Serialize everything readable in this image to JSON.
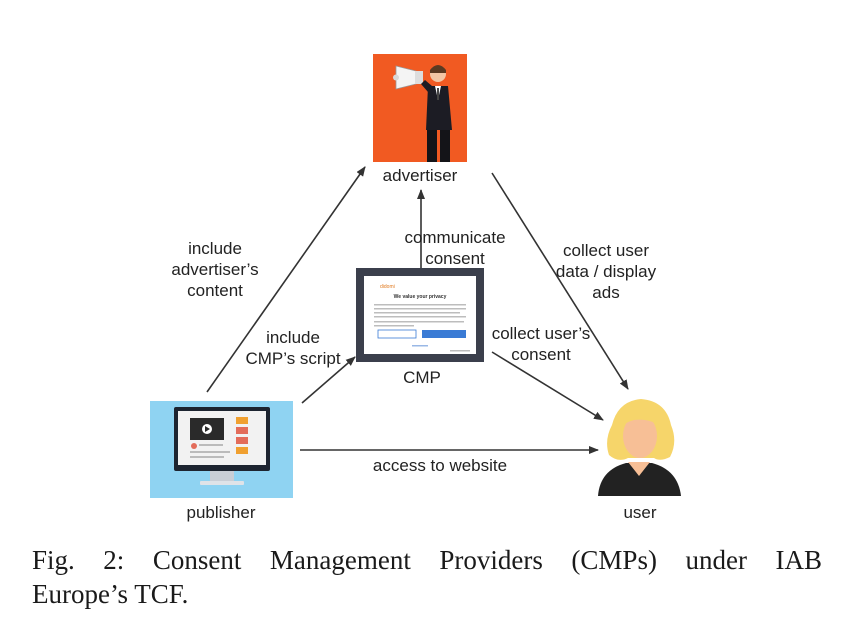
{
  "nodes": {
    "advertiser": "advertiser",
    "publisher": "publisher",
    "user": "user",
    "cmp": "CMP"
  },
  "edges": {
    "publisher_to_advertiser": [
      "include",
      "advertiser’s",
      "content"
    ],
    "publisher_to_cmp": [
      "include",
      "CMP’s script"
    ],
    "cmp_to_advertiser": [
      "communicate",
      "consent"
    ],
    "cmp_to_user": [
      "collect user’s",
      "consent"
    ],
    "advertiser_to_user": [
      "collect user",
      "data / display",
      "ads"
    ],
    "publisher_to_user": [
      "access to website"
    ]
  },
  "cmp_dialog": {
    "brand": "didomi",
    "title": "We value your privacy"
  },
  "caption": {
    "line1": "Fig. 2: Consent Management Providers (CMPs) under IAB",
    "line2": "Europe’s TCF."
  },
  "colors": {
    "advertiser_bg": "#f15a22",
    "publisher_bg": "#8fd3f2",
    "cmp_frame": "#3b3f4c",
    "arrow": "#333333",
    "user_hair": "#f6d56a",
    "user_skin": "#f7bf96"
  }
}
